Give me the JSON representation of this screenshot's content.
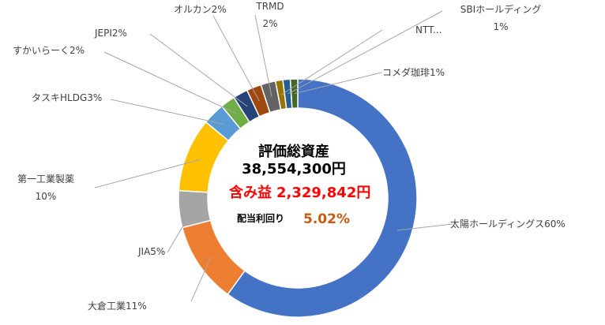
{
  "chart_data": {
    "type": "pie",
    "series": [
      {
        "name": "太陽ホールディングス",
        "value": 60,
        "color": "#4472c4",
        "label": "太陽ホールディングス60%"
      },
      {
        "name": "大倉工業",
        "value": 11,
        "color": "#ed7d31",
        "label": "大倉工業11%"
      },
      {
        "name": "JIA",
        "value": 5,
        "color": "#a5a5a5",
        "label": "JIA5%"
      },
      {
        "name": "第一工業製薬",
        "value": 10,
        "color": "#ffc000",
        "label": "第一工業製薬\n10%"
      },
      {
        "name": "タスキHLDG",
        "value": 3,
        "color": "#5b9bd5",
        "label": "タスキHLDG3%"
      },
      {
        "name": "すかいらーく",
        "value": 2,
        "color": "#70ad47",
        "label": "すかいらーく2%"
      },
      {
        "name": "JEPI",
        "value": 2,
        "color": "#264478",
        "label": "JEPI2%"
      },
      {
        "name": "オルカン",
        "value": 2,
        "color": "#9e480e",
        "label": "オルカン2%"
      },
      {
        "name": "TRMD",
        "value": 2,
        "color": "#636363",
        "label": "TRMD\n2%"
      },
      {
        "name": "NTT",
        "value": 1,
        "color": "#997300",
        "label": "NTT..."
      },
      {
        "name": "SBIホールディング",
        "value": 1,
        "color": "#255e91",
        "label": "SBIホールディング\n1%"
      },
      {
        "name": "コメダ珈琲",
        "value": 1,
        "color": "#43682b",
        "label": "コメダ珈琲1%"
      }
    ],
    "center": {
      "title": "評価総資産",
      "total_value": "38,554,300円",
      "gain_label": "含み益",
      "gain_value": "2,329,842円",
      "yield_label": "配当利回り",
      "yield_value": "5.02%"
    },
    "legend": "none"
  }
}
